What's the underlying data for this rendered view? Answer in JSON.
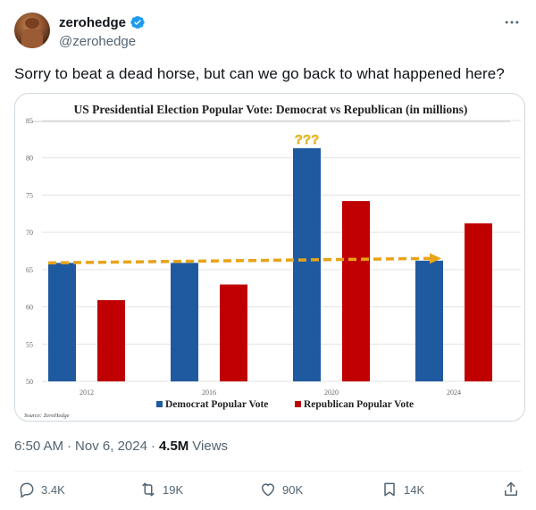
{
  "user": {
    "display_name": "zerohedge",
    "handle": "@zerohedge",
    "verified": true
  },
  "tweet": {
    "text": "Sorry to beat a dead horse, but can we go back to what happened here?"
  },
  "chart_data": {
    "type": "bar",
    "title": "US Presidential Election Popular Vote: Democrat vs Republican (in millions)",
    "categories": [
      "2012",
      "2016",
      "2020",
      "2024"
    ],
    "series": [
      {
        "name": "Democrat Popular Vote",
        "values": [
          65.9,
          65.9,
          81.3,
          66.2
        ],
        "color": "#1f5aa0"
      },
      {
        "name": "Republican Popular Vote",
        "values": [
          60.9,
          63.0,
          74.2,
          71.2
        ],
        "color": "#c00000"
      }
    ],
    "ylim": [
      50,
      85
    ],
    "yticks": [
      50,
      55,
      60,
      65,
      70,
      75,
      80,
      85
    ],
    "grid": true,
    "legend": "bottom",
    "annotation": "???",
    "trend_arrow": {
      "from": "2012",
      "to": "2024",
      "value": 66,
      "color": "#e8a317"
    },
    "source": "Source: ZeroHedge"
  },
  "meta": {
    "time": "6:50 AM",
    "separator": "·",
    "date": "Nov 6, 2024",
    "views_count": "4.5M",
    "views_label": "Views"
  },
  "actions": {
    "replies": "3.4K",
    "retweets": "19K",
    "likes": "90K",
    "bookmarks": "14K"
  }
}
